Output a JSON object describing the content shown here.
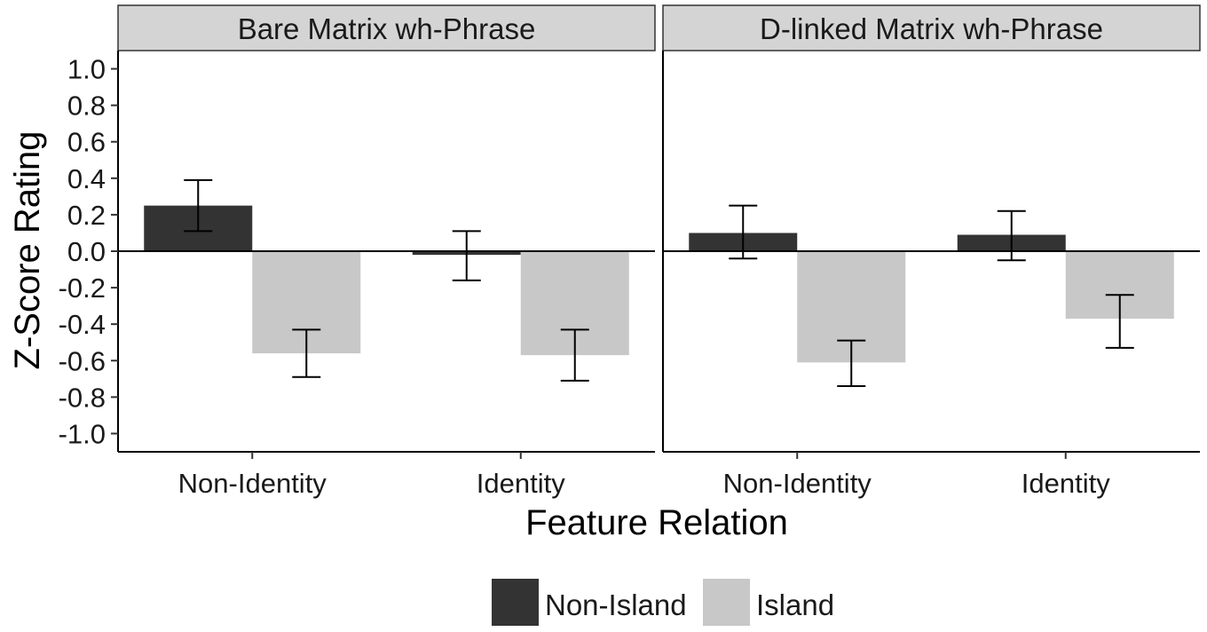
{
  "chart_data": {
    "type": "bar",
    "xlabel": "Feature Relation",
    "ylabel": "Z-Score Rating",
    "ylim": [
      -1.1,
      1.1
    ],
    "yticks": [
      1.0,
      0.8,
      0.6,
      0.4,
      0.2,
      0.0,
      -0.2,
      -0.4,
      -0.6,
      -0.8,
      -1.0
    ],
    "ytick_labels": [
      "1.0",
      "0.8",
      "0.6",
      "0.4",
      "0.2",
      "0.0",
      "-0.2",
      "-0.4",
      "-0.6",
      "-0.8",
      "-1.0"
    ],
    "categories": [
      "Non-Identity",
      "Identity"
    ],
    "legend": {
      "placement": "bottom",
      "entries": [
        {
          "name": "Non-Island",
          "color": "#333333"
        },
        {
          "name": "Island",
          "color": "#c8c8c8"
        }
      ]
    },
    "grid": false,
    "panels": [
      {
        "title": "Bare Matrix wh-Phrase",
        "series": [
          {
            "name": "Non-Island",
            "values": [
              0.25,
              -0.02
            ],
            "err_low": [
              0.11,
              -0.16
            ],
            "err_high": [
              0.39,
              0.11
            ]
          },
          {
            "name": "Island",
            "values": [
              -0.56,
              -0.57
            ],
            "err_low": [
              -0.69,
              -0.71
            ],
            "err_high": [
              -0.43,
              -0.43
            ]
          }
        ]
      },
      {
        "title": "D-linked Matrix wh-Phrase",
        "series": [
          {
            "name": "Non-Island",
            "values": [
              0.1,
              0.09
            ],
            "err_low": [
              -0.04,
              -0.05
            ],
            "err_high": [
              0.25,
              0.22
            ]
          },
          {
            "name": "Island",
            "values": [
              -0.61,
              -0.37
            ],
            "err_low": [
              -0.74,
              -0.53
            ],
            "err_high": [
              -0.49,
              -0.24
            ]
          }
        ]
      }
    ]
  }
}
